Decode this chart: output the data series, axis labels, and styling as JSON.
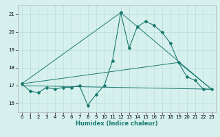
{
  "xlabel": "Humidex (Indice chaleur)",
  "bg_color": "#d6f0ee",
  "grid_color": "#b8dcd8",
  "line_color": "#1a7a6e",
  "xlim": [
    -0.5,
    23.5
  ],
  "ylim": [
    15.5,
    21.5
  ],
  "yticks": [
    16,
    17,
    18,
    19,
    20,
    21
  ],
  "xticks": [
    0,
    1,
    2,
    3,
    4,
    5,
    6,
    7,
    8,
    9,
    10,
    11,
    12,
    13,
    14,
    15,
    16,
    17,
    18,
    19,
    20,
    21,
    22,
    23
  ],
  "line1_x": [
    0,
    1,
    2,
    3,
    4,
    5,
    6,
    7,
    8,
    9,
    10,
    11,
    12,
    13,
    14,
    15,
    16,
    17,
    18,
    19,
    20,
    21,
    22,
    23
  ],
  "line1_y": [
    17.1,
    16.7,
    16.6,
    16.9,
    16.8,
    16.9,
    16.9,
    17.0,
    15.9,
    16.5,
    17.0,
    18.4,
    21.1,
    19.1,
    20.3,
    20.6,
    20.4,
    20.0,
    19.4,
    18.3,
    17.5,
    17.3,
    16.8,
    16.8
  ],
  "line2_x": [
    0,
    12,
    23
  ],
  "line2_y": [
    17.1,
    21.1,
    16.8
  ],
  "line3_x": [
    0,
    19,
    23
  ],
  "line3_y": [
    17.1,
    18.3,
    16.8
  ],
  "line4_x": [
    0,
    23
  ],
  "line4_y": [
    17.0,
    16.8
  ]
}
